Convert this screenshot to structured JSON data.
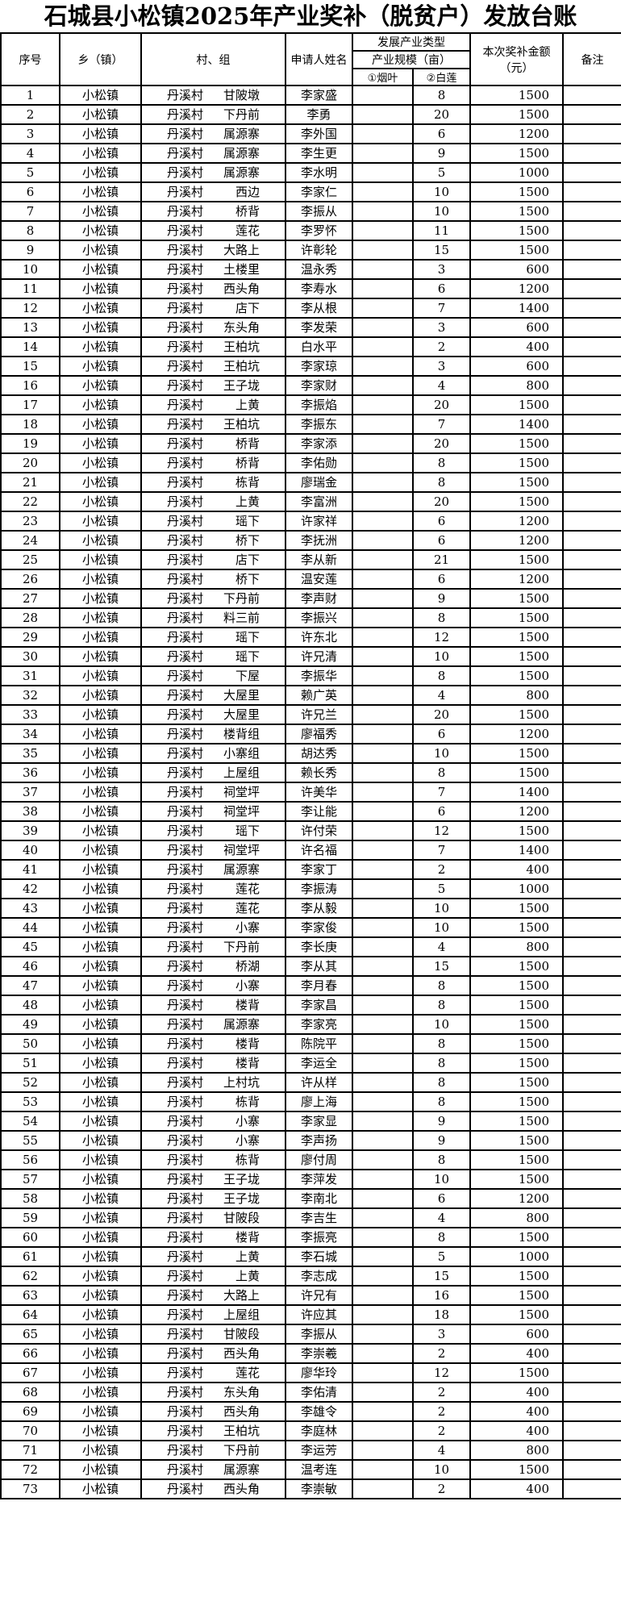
{
  "title": "石城县小松镇2025年产业奖补（脱贫户）发放台账",
  "headers": {
    "no": "序号",
    "town": "乡（镇）",
    "village": "村、组",
    "name": "申请人姓名",
    "type": "发展产业类型",
    "scale": "产业规模（亩）",
    "tobacco": "①烟叶",
    "lotus": "②白莲",
    "amount": "本次奖补金额（元）",
    "note": "备注"
  },
  "rows": [
    [
      "1",
      "小松镇",
      "丹溪村",
      "甘陂墩",
      "李家盛",
      "",
      "8",
      "1500"
    ],
    [
      "2",
      "小松镇",
      "丹溪村",
      "下丹前",
      "李勇",
      "",
      "20",
      "1500"
    ],
    [
      "3",
      "小松镇",
      "丹溪村",
      "属源寨",
      "李外国",
      "",
      "6",
      "1200"
    ],
    [
      "4",
      "小松镇",
      "丹溪村",
      "属源寨",
      "李生更",
      "",
      "9",
      "1500"
    ],
    [
      "5",
      "小松镇",
      "丹溪村",
      "属源寨",
      "李水明",
      "",
      "5",
      "1000"
    ],
    [
      "6",
      "小松镇",
      "丹溪村",
      "西边",
      "李家仁",
      "",
      "10",
      "1500"
    ],
    [
      "7",
      "小松镇",
      "丹溪村",
      "桥背",
      "李振从",
      "",
      "10",
      "1500"
    ],
    [
      "8",
      "小松镇",
      "丹溪村",
      "莲花",
      "李罗怀",
      "",
      "11",
      "1500"
    ],
    [
      "9",
      "小松镇",
      "丹溪村",
      "大路上",
      "许彰轮",
      "",
      "15",
      "1500"
    ],
    [
      "10",
      "小松镇",
      "丹溪村",
      "土楼里",
      "温永秀",
      "",
      "3",
      "600"
    ],
    [
      "11",
      "小松镇",
      "丹溪村",
      "西头角",
      "李寿水",
      "",
      "6",
      "1200"
    ],
    [
      "12",
      "小松镇",
      "丹溪村",
      "店下",
      "李从根",
      "",
      "7",
      "1400"
    ],
    [
      "13",
      "小松镇",
      "丹溪村",
      "东头角",
      "李发荣",
      "",
      "3",
      "600"
    ],
    [
      "14",
      "小松镇",
      "丹溪村",
      "王柏坑",
      "白水平",
      "",
      "2",
      "400"
    ],
    [
      "15",
      "小松镇",
      "丹溪村",
      "王柏坑",
      "李家琼",
      "",
      "3",
      "600"
    ],
    [
      "16",
      "小松镇",
      "丹溪村",
      "王子垅",
      "李家财",
      "",
      "4",
      "800"
    ],
    [
      "17",
      "小松镇",
      "丹溪村",
      "上黄",
      "李振焰",
      "",
      "20",
      "1500"
    ],
    [
      "18",
      "小松镇",
      "丹溪村",
      "王柏坑",
      "李振东",
      "",
      "7",
      "1400"
    ],
    [
      "19",
      "小松镇",
      "丹溪村",
      "桥背",
      "李家添",
      "",
      "20",
      "1500"
    ],
    [
      "20",
      "小松镇",
      "丹溪村",
      "桥背",
      "李佑勋",
      "",
      "8",
      "1500"
    ],
    [
      "21",
      "小松镇",
      "丹溪村",
      "栋背",
      "廖瑞金",
      "",
      "8",
      "1500"
    ],
    [
      "22",
      "小松镇",
      "丹溪村",
      "上黄",
      "李富洲",
      "",
      "20",
      "1500"
    ],
    [
      "23",
      "小松镇",
      "丹溪村",
      "瑶下",
      "许家祥",
      "",
      "6",
      "1200"
    ],
    [
      "24",
      "小松镇",
      "丹溪村",
      "桥下",
      "李抚洲",
      "",
      "6",
      "1200"
    ],
    [
      "25",
      "小松镇",
      "丹溪村",
      "店下",
      "李从新",
      "",
      "21",
      "1500"
    ],
    [
      "26",
      "小松镇",
      "丹溪村",
      "桥下",
      "温安莲",
      "",
      "6",
      "1200"
    ],
    [
      "27",
      "小松镇",
      "丹溪村",
      "下丹前",
      "李声财",
      "",
      "9",
      "1500"
    ],
    [
      "28",
      "小松镇",
      "丹溪村",
      "料三前",
      "李振兴",
      "",
      "8",
      "1500"
    ],
    [
      "29",
      "小松镇",
      "丹溪村",
      "瑶下",
      "许东北",
      "",
      "12",
      "1500"
    ],
    [
      "30",
      "小松镇",
      "丹溪村",
      "瑶下",
      "许兄清",
      "",
      "10",
      "1500"
    ],
    [
      "31",
      "小松镇",
      "丹溪村",
      "下屋",
      "李振华",
      "",
      "8",
      "1500"
    ],
    [
      "32",
      "小松镇",
      "丹溪村",
      "大屋里",
      "赖广英",
      "",
      "4",
      "800"
    ],
    [
      "33",
      "小松镇",
      "丹溪村",
      "大屋里",
      "许兄兰",
      "",
      "20",
      "1500"
    ],
    [
      "34",
      "小松镇",
      "丹溪村",
      "楼背组",
      "廖福秀",
      "",
      "6",
      "1200"
    ],
    [
      "35",
      "小松镇",
      "丹溪村",
      "小寨组",
      "胡达秀",
      "",
      "10",
      "1500"
    ],
    [
      "36",
      "小松镇",
      "丹溪村",
      "上屋组",
      "赖长秀",
      "",
      "8",
      "1500"
    ],
    [
      "37",
      "小松镇",
      "丹溪村",
      "祠堂坪",
      "许美华",
      "",
      "7",
      "1400"
    ],
    [
      "38",
      "小松镇",
      "丹溪村",
      "祠堂坪",
      "李让能",
      "",
      "6",
      "1200"
    ],
    [
      "39",
      "小松镇",
      "丹溪村",
      "瑶下",
      "许付荣",
      "",
      "12",
      "1500"
    ],
    [
      "40",
      "小松镇",
      "丹溪村",
      "祠堂坪",
      "许名福",
      "",
      "7",
      "1400"
    ],
    [
      "41",
      "小松镇",
      "丹溪村",
      "属源寨",
      "李家丁",
      "",
      "2",
      "400"
    ],
    [
      "42",
      "小松镇",
      "丹溪村",
      "莲花",
      "李振涛",
      "",
      "5",
      "1000"
    ],
    [
      "43",
      "小松镇",
      "丹溪村",
      "莲花",
      "李从毅",
      "",
      "10",
      "1500"
    ],
    [
      "44",
      "小松镇",
      "丹溪村",
      "小寨",
      "李家俊",
      "",
      "10",
      "1500"
    ],
    [
      "45",
      "小松镇",
      "丹溪村",
      "下丹前",
      "李长庚",
      "",
      "4",
      "800"
    ],
    [
      "46",
      "小松镇",
      "丹溪村",
      "桥湖",
      "李从其",
      "",
      "15",
      "1500"
    ],
    [
      "47",
      "小松镇",
      "丹溪村",
      "小寨",
      "李月春",
      "",
      "8",
      "1500"
    ],
    [
      "48",
      "小松镇",
      "丹溪村",
      "楼背",
      "李家昌",
      "",
      "8",
      "1500"
    ],
    [
      "49",
      "小松镇",
      "丹溪村",
      "属源寨",
      "李家亮",
      "",
      "10",
      "1500"
    ],
    [
      "50",
      "小松镇",
      "丹溪村",
      "楼背",
      "陈院平",
      "",
      "8",
      "1500"
    ],
    [
      "51",
      "小松镇",
      "丹溪村",
      "楼背",
      "李运全",
      "",
      "8",
      "1500"
    ],
    [
      "52",
      "小松镇",
      "丹溪村",
      "上村坑",
      "许从样",
      "",
      "8",
      "1500"
    ],
    [
      "53",
      "小松镇",
      "丹溪村",
      "栋背",
      "廖上海",
      "",
      "8",
      "1500"
    ],
    [
      "54",
      "小松镇",
      "丹溪村",
      "小寨",
      "李家显",
      "",
      "9",
      "1500"
    ],
    [
      "55",
      "小松镇",
      "丹溪村",
      "小寨",
      "李声扬",
      "",
      "9",
      "1500"
    ],
    [
      "56",
      "小松镇",
      "丹溪村",
      "栋背",
      "廖付周",
      "",
      "8",
      "1500"
    ],
    [
      "57",
      "小松镇",
      "丹溪村",
      "王子垅",
      "李萍发",
      "",
      "10",
      "1500"
    ],
    [
      "58",
      "小松镇",
      "丹溪村",
      "王子垅",
      "李南北",
      "",
      "6",
      "1200"
    ],
    [
      "59",
      "小松镇",
      "丹溪村",
      "甘陂段",
      "李吉生",
      "",
      "4",
      "800"
    ],
    [
      "60",
      "小松镇",
      "丹溪村",
      "楼背",
      "李振亮",
      "",
      "8",
      "1500"
    ],
    [
      "61",
      "小松镇",
      "丹溪村",
      "上黄",
      "李石城",
      "",
      "5",
      "1000"
    ],
    [
      "62",
      "小松镇",
      "丹溪村",
      "上黄",
      "李志成",
      "",
      "15",
      "1500"
    ],
    [
      "63",
      "小松镇",
      "丹溪村",
      "大路上",
      "许兄有",
      "",
      "16",
      "1500"
    ],
    [
      "64",
      "小松镇",
      "丹溪村",
      "上屋组",
      "许应其",
      "",
      "18",
      "1500"
    ],
    [
      "65",
      "小松镇",
      "丹溪村",
      "甘陂段",
      "李振从",
      "",
      "3",
      "600"
    ],
    [
      "66",
      "小松镇",
      "丹溪村",
      "西头角",
      "李崇羲",
      "",
      "2",
      "400"
    ],
    [
      "67",
      "小松镇",
      "丹溪村",
      "莲花",
      "廖华玲",
      "",
      "12",
      "1500"
    ],
    [
      "68",
      "小松镇",
      "丹溪村",
      "东头角",
      "李佑清",
      "",
      "2",
      "400"
    ],
    [
      "69",
      "小松镇",
      "丹溪村",
      "西头角",
      "李雄令",
      "",
      "2",
      "400"
    ],
    [
      "70",
      "小松镇",
      "丹溪村",
      "王柏坑",
      "李庭林",
      "",
      "2",
      "400"
    ],
    [
      "71",
      "小松镇",
      "丹溪村",
      "下丹前",
      "李运芳",
      "",
      "4",
      "800"
    ],
    [
      "72",
      "小松镇",
      "丹溪村",
      "属源寨",
      "温考连",
      "",
      "10",
      "1500"
    ],
    [
      "73",
      "小松镇",
      "丹溪村",
      "西头角",
      "李崇敏",
      "",
      "2",
      "400"
    ]
  ]
}
